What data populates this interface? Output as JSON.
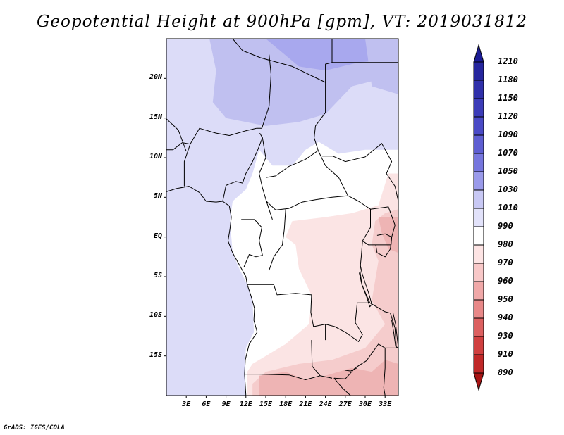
{
  "title": "Geopotential Height at 900hPa [gpm], VT: 2019031812",
  "footer": "GrADS: IGES/COLA",
  "lat_labels": [
    "20N",
    "15N",
    "10N",
    "5N",
    "EQ",
    "5S",
    "10S",
    "15S"
  ],
  "lon_labels": [
    "3E",
    "6E",
    "9E",
    "12E",
    "15E",
    "18E",
    "21E",
    "24E",
    "27E",
    "30E",
    "33E"
  ],
  "colorbar": {
    "levels": [
      "1210",
      "1180",
      "1150",
      "1120",
      "1090",
      "1070",
      "1050",
      "1030",
      "1010",
      "990",
      "980",
      "970",
      "960",
      "950",
      "940",
      "930",
      "910",
      "890"
    ],
    "colors": [
      "#1c1c96",
      "#26269e",
      "#3030aa",
      "#3c3cb8",
      "#4a4ac6",
      "#5e5ed2",
      "#7676de",
      "#9a9aea",
      "#c8c8f4",
      "#e2e2fa",
      "#ffffff",
      "#fde4e4",
      "#f8c8c8",
      "#f0a8a8",
      "#e88888",
      "#dc6060",
      "#d04040",
      "#c02828",
      "#a81414"
    ]
  },
  "map": {
    "extent": {
      "lon_min": 0,
      "lon_max": 35,
      "lat_min": -20,
      "lat_max": 25
    },
    "fill_colors": {
      "ocean_low": "#dcdcf8",
      "sahel_band": "#d8d8f6",
      "sahara_mid": "#c0c0f0",
      "sahara_high": "#a8a8ee",
      "neutral": "#ffffff",
      "warm_light": "#fbe4e4",
      "warm_mid": "#f5cccc",
      "warm_strong": "#eeb4b4"
    }
  }
}
